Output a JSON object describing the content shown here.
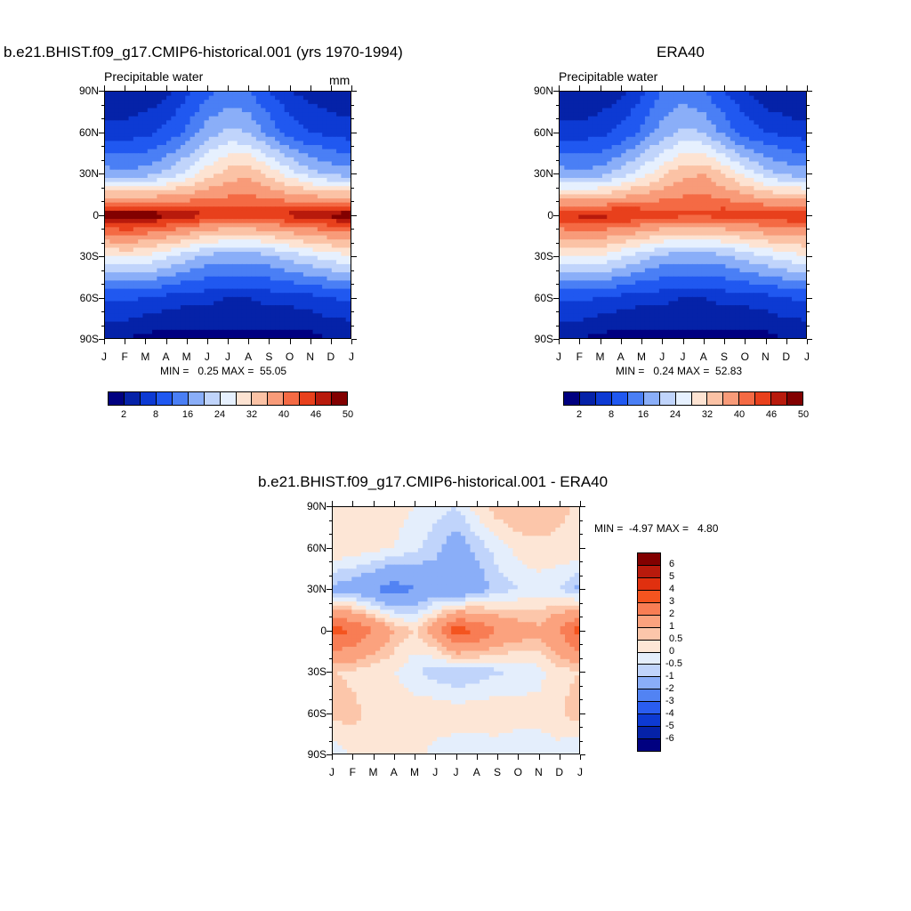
{
  "panels": [
    {
      "title": "b.e21.BHIST.f09_g17.CMIP6-historical.001 (yrs 1970-1994)",
      "left_label": "Precipitable water",
      "right_label": "mm",
      "minmax": "MIN =   0.25 MAX =  55.05"
    },
    {
      "title": "ERA40",
      "left_label": "Precipitable water",
      "right_label": "",
      "minmax": "MIN =   0.24 MAX =  52.83"
    },
    {
      "title": "b.e21.BHIST.f09_g17.CMIP6-historical.001 - ERA40",
      "left_label": "",
      "right_label": "",
      "minmax": "MIN =  -4.97 MAX =   4.80"
    }
  ],
  "y_ticks": [
    "90N",
    "60N",
    "30N",
    "0",
    "30S",
    "60S",
    "90S"
  ],
  "x_ticks": [
    "J",
    "F",
    "M",
    "A",
    "M",
    "J",
    "J",
    "A",
    "S",
    "O",
    "N",
    "D",
    "J"
  ],
  "abs_colorbar": {
    "labels": [
      "2",
      "8",
      "16",
      "24",
      "32",
      "40",
      "46",
      "50"
    ],
    "colors": [
      "#000080",
      "#0522a8",
      "#0d3ad3",
      "#2058f0",
      "#4a7ff5",
      "#8aaef8",
      "#c0d4fb",
      "#e6f0fe",
      "#fde3d2",
      "#fbc2a5",
      "#f89b79",
      "#f46a44",
      "#e8401c",
      "#b81a0c",
      "#820000"
    ]
  },
  "diff_colorbar": {
    "labels": [
      "6",
      "5",
      "4",
      "3",
      "2",
      "1",
      "0.5",
      "0",
      "-0.5",
      "-1",
      "-2",
      "-3",
      "-4",
      "-5",
      "-6"
    ],
    "colors": [
      "#820000",
      "#b81a0c",
      "#e0300f",
      "#f4541f",
      "#f87d54",
      "#fba27e",
      "#fcc6aa",
      "#fde6d6",
      "#e4eefc",
      "#c0d4fb",
      "#8aaef8",
      "#5283f3",
      "#2a5df0",
      "#0d3ad3",
      "#0522a8",
      "#000080"
    ]
  },
  "chart_data": [
    {
      "type": "heatmap",
      "title": "b.e21.BHIST.f09_g17.CMIP6-historical.001 (yrs 1970-1994)",
      "subtitle": "Precipitable water",
      "units": "mm",
      "x": [
        "J",
        "F",
        "M",
        "A",
        "M",
        "J",
        "J",
        "A",
        "S",
        "O",
        "N",
        "D",
        "J"
      ],
      "y": [
        "90N",
        "60N",
        "30N",
        "0",
        "30S",
        "60S",
        "90S"
      ],
      "min": 0.25,
      "max": 55.05,
      "levels": [
        2,
        8,
        16,
        24,
        32,
        40,
        46,
        50
      ],
      "values_by_lat": {
        "90N": [
          3,
          3,
          3,
          4,
          7,
          11,
          13,
          12,
          8,
          5,
          4,
          3,
          3
        ],
        "60N": [
          6,
          6,
          7,
          9,
          13,
          18,
          21,
          20,
          15,
          10,
          8,
          7,
          6
        ],
        "30N": [
          18,
          17,
          18,
          21,
          25,
          30,
          34,
          35,
          31,
          26,
          22,
          19,
          18
        ],
        "0": [
          50,
          51,
          50,
          49,
          48,
          46,
          45,
          45,
          46,
          47,
          48,
          49,
          50
        ],
        "30S": [
          28,
          29,
          28,
          25,
          22,
          19,
          18,
          18,
          19,
          22,
          24,
          26,
          28
        ],
        "60S": [
          9,
          9,
          8,
          7,
          6,
          6,
          5,
          5,
          6,
          6,
          7,
          8,
          9
        ],
        "90S": [
          2,
          2,
          1,
          1,
          1,
          1,
          1,
          1,
          1,
          1,
          1,
          2,
          2
        ]
      }
    },
    {
      "type": "heatmap",
      "title": "ERA40",
      "subtitle": "Precipitable water",
      "x": [
        "J",
        "F",
        "M",
        "A",
        "M",
        "J",
        "J",
        "A",
        "S",
        "O",
        "N",
        "D",
        "J"
      ],
      "y": [
        "90N",
        "60N",
        "30N",
        "0",
        "30S",
        "60S",
        "90S"
      ],
      "min": 0.24,
      "max": 52.83,
      "levels": [
        2,
        8,
        16,
        24,
        32,
        40,
        46,
        50
      ],
      "values_by_lat": {
        "90N": [
          2,
          2,
          3,
          4,
          7,
          12,
          14,
          12,
          8,
          5,
          3,
          2,
          2
        ],
        "60N": [
          6,
          6,
          7,
          9,
          13,
          18,
          21,
          20,
          15,
          10,
          8,
          7,
          6
        ],
        "30N": [
          18,
          17,
          18,
          22,
          26,
          31,
          35,
          36,
          32,
          27,
          22,
          19,
          18
        ],
        "0": [
          46,
          47,
          47,
          47,
          46,
          45,
          44,
          44,
          45,
          45,
          46,
          46,
          46
        ],
        "30S": [
          28,
          29,
          28,
          25,
          22,
          19,
          18,
          18,
          19,
          22,
          24,
          26,
          28
        ],
        "60S": [
          9,
          9,
          8,
          7,
          6,
          6,
          5,
          5,
          6,
          6,
          7,
          8,
          9
        ],
        "90S": [
          2,
          2,
          1,
          1,
          1,
          1,
          1,
          1,
          1,
          1,
          1,
          2,
          2
        ]
      }
    },
    {
      "type": "heatmap",
      "title": "b.e21.BHIST.f09_g17.CMIP6-historical.001 - ERA40",
      "x": [
        "J",
        "F",
        "M",
        "A",
        "M",
        "J",
        "J",
        "A",
        "S",
        "O",
        "N",
        "D",
        "J"
      ],
      "y": [
        "90N",
        "60N",
        "30N",
        "0",
        "30S",
        "60S",
        "90S"
      ],
      "min": -4.97,
      "max": 4.8,
      "levels": [
        -6,
        -5,
        -4,
        -3,
        -2,
        -1,
        -0.5,
        0,
        0.5,
        1,
        2,
        3,
        4,
        5,
        6
      ],
      "values_by_lat": {
        "90N": [
          0.4,
          0.5,
          0.3,
          0.2,
          0,
          -0.3,
          -0.5,
          0.2,
          0.8,
          1.0,
          0.8,
          0.6,
          0.4
        ],
        "60N": [
          0.5,
          0.4,
          0.2,
          0,
          -0.4,
          -0.8,
          -1.5,
          -0.8,
          -0.3,
          0.2,
          0.4,
          0.4,
          0.5
        ],
        "30N": [
          -1.2,
          -1.5,
          -2.0,
          -2.5,
          -2.0,
          -1.5,
          -2.0,
          -1.5,
          -0.8,
          -0.5,
          -0.3,
          -0.5,
          -1.2
        ],
        "0": [
          3.5,
          3.0,
          2.0,
          1.0,
          0.5,
          1.5,
          3.5,
          3.0,
          2.0,
          1.5,
          1.2,
          2.0,
          3.5
        ],
        "30S": [
          0.5,
          0.4,
          0.2,
          0,
          -0.4,
          -0.8,
          -1.0,
          -0.8,
          -0.6,
          -0.4,
          -0.2,
          0.3,
          0.5
        ],
        "60S": [
          0.8,
          0.6,
          0.4,
          0.3,
          0.3,
          0.4,
          0.3,
          0.3,
          0.4,
          0.3,
          0.2,
          0.4,
          0.8
        ],
        "90S": [
          -0.5,
          0.3,
          0.2,
          0.2,
          0.2,
          -0.2,
          -0.3,
          -0.3,
          -0.3,
          -0.4,
          -0.3,
          -0.2,
          -0.5
        ]
      }
    }
  ]
}
